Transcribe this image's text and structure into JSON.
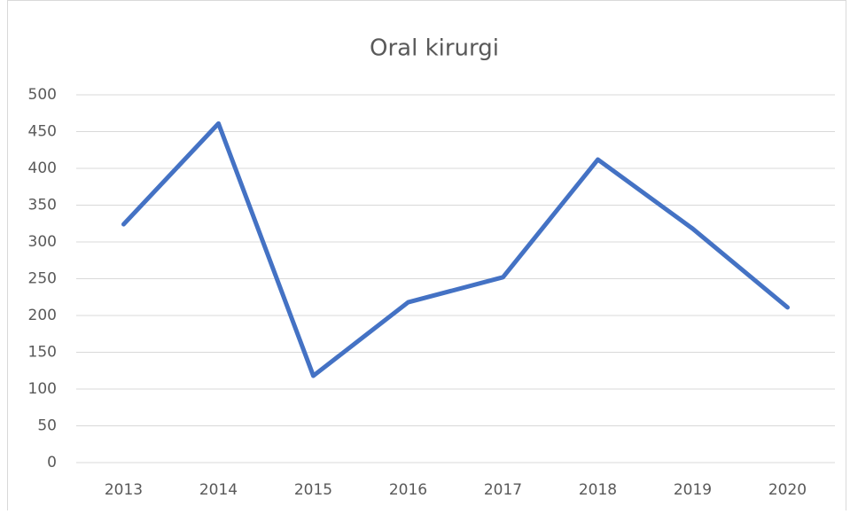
{
  "chart_data": {
    "type": "line",
    "title": "Oral kirurgi",
    "categories": [
      "2013",
      "2014",
      "2015",
      "2016",
      "2017",
      "2018",
      "2019",
      "2020"
    ],
    "series": [
      {
        "name": "Oral kirurgi",
        "color": "#4472c4",
        "values": [
          324,
          461,
          118,
          218,
          252,
          412,
          318,
          211
        ]
      }
    ],
    "ylim": [
      0,
      500
    ],
    "yticks": [
      0,
      50,
      100,
      150,
      200,
      250,
      300,
      350,
      400,
      450,
      500
    ],
    "grid": true
  }
}
